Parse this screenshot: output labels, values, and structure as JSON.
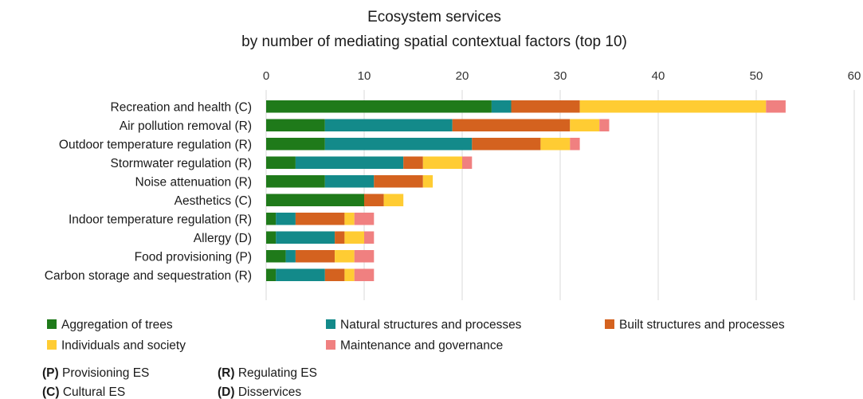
{
  "chart_data": {
    "type": "bar",
    "orientation": "horizontal",
    "stacked": true,
    "title": "Ecosystem services",
    "subtitle": "by number of mediating spatial contextual factors (top 10)",
    "xlim": [
      0,
      60
    ],
    "xticks": [
      0,
      10,
      20,
      30,
      40,
      50,
      60
    ],
    "grid": true,
    "legend_position": "bottom",
    "categories": [
      "Recreation and health (C)",
      "Air pollution removal (R)",
      "Outdoor temperature regulation (R)",
      "Stormwater regulation (R)",
      "Noise attenuation (R)",
      "Aesthetics (C)",
      "Indoor temperature regulation (R)",
      "Allergy (D)",
      "Food provisioning (P)",
      "Carbon storage and sequestration (R)"
    ],
    "series": [
      {
        "name": "Aggregation of trees",
        "color": "#1f7a1a",
        "values": [
          23,
          6,
          6,
          3,
          6,
          10,
          1,
          1,
          2,
          1
        ]
      },
      {
        "name": "Natural structures and processes",
        "color": "#138a8a",
        "values": [
          2,
          13,
          15,
          11,
          5,
          0,
          2,
          6,
          1,
          5
        ]
      },
      {
        "name": "Built structures and processes",
        "color": "#d4621f",
        "values": [
          7,
          12,
          7,
          2,
          5,
          2,
          5,
          1,
          4,
          2
        ]
      },
      {
        "name": "Individuals and society",
        "color": "#ffcc33",
        "values": [
          19,
          3,
          3,
          4,
          1,
          2,
          1,
          2,
          2,
          1
        ]
      },
      {
        "name": "Maintenance and governance",
        "color": "#f08080",
        "values": [
          2,
          1,
          1,
          1,
          0,
          0,
          2,
          1,
          2,
          2
        ]
      }
    ]
  },
  "notes": [
    {
      "code": "(P)",
      "text": "Provisioning ES"
    },
    {
      "code": "(R)",
      "text": "Regulating ES"
    },
    {
      "code": "(C)",
      "text": "Cultural ES"
    },
    {
      "code": "(D)",
      "text": "Disservices"
    }
  ]
}
